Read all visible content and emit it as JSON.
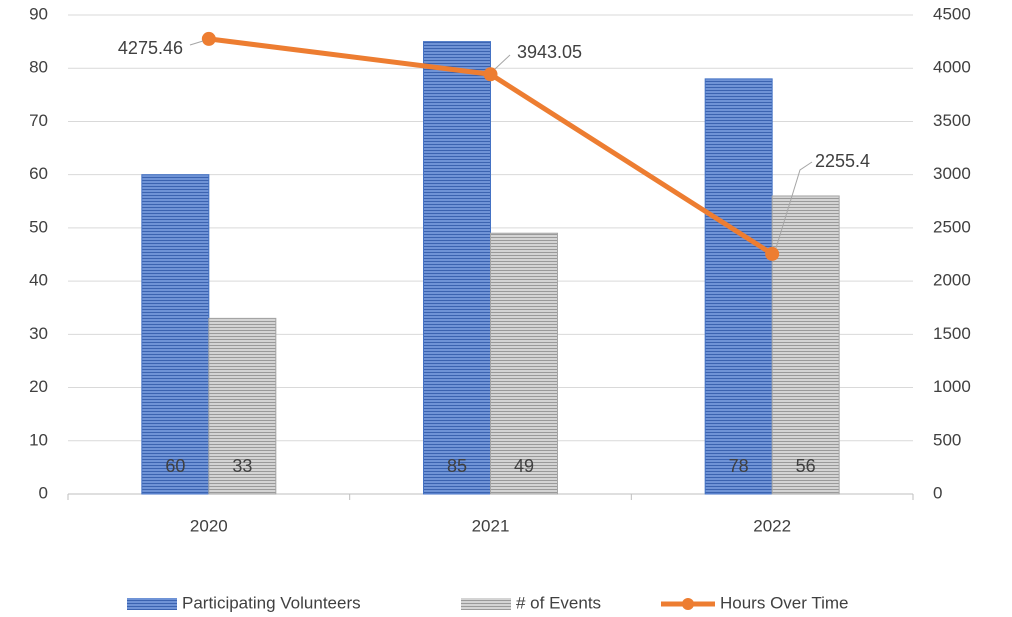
{
  "chart_data": {
    "type": "bar",
    "categories": [
      "2020",
      "2021",
      "2022"
    ],
    "series": [
      {
        "name": "Participating Volunteers",
        "color": "#4472c4",
        "values": [
          60,
          85,
          78
        ]
      },
      {
        "name": "# of Events",
        "color": "#a5a5a5",
        "values": [
          33,
          49,
          56
        ]
      },
      {
        "name": "Hours Over Time",
        "color": "#ed7d31",
        "type": "line",
        "axis": "y2",
        "values": [
          4275.46,
          3943.05,
          2255.4
        ]
      }
    ],
    "ylim": [
      0,
      90
    ],
    "yticks": [
      0,
      10,
      20,
      30,
      40,
      50,
      60,
      70,
      80,
      90
    ],
    "y2lim": [
      0,
      4500
    ],
    "y2ticks": [
      0,
      500,
      1000,
      1500,
      2000,
      2500,
      3000,
      3500,
      4000,
      4500
    ],
    "grid": true,
    "legend": "bottom"
  }
}
